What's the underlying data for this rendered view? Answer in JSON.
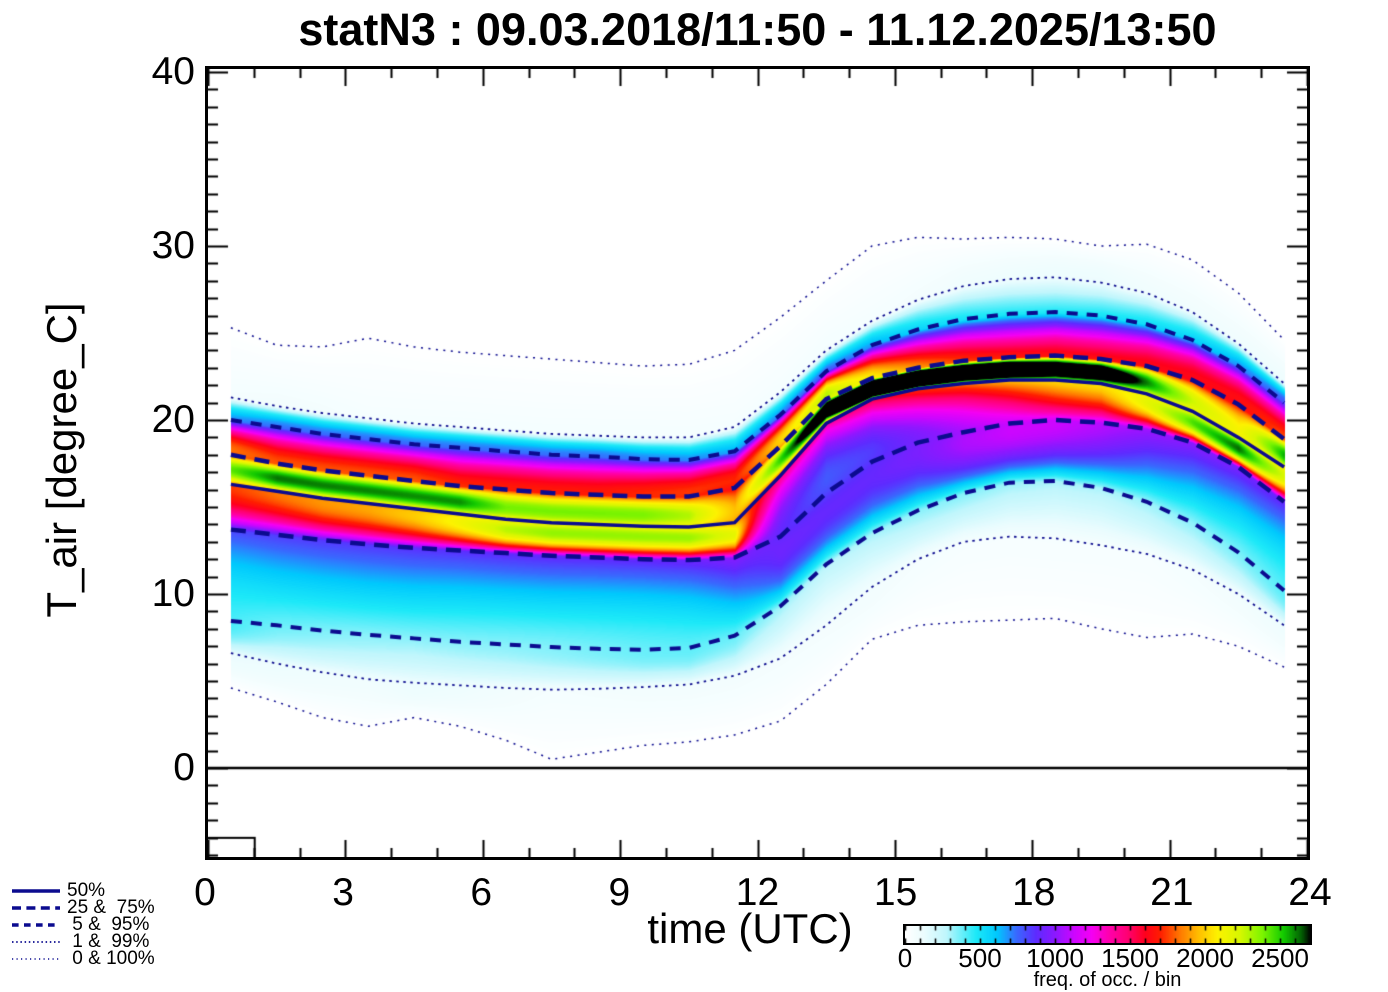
{
  "title": "statN3 : 09.03.2018/11:50 - 11.12.2025/13:50",
  "axes": {
    "x": {
      "label": "time (UTC)",
      "ticks": [
        0,
        3,
        6,
        9,
        12,
        15,
        18,
        21,
        24
      ],
      "min": 0,
      "max": 24,
      "minor_step": 1
    },
    "y": {
      "label": "T_air [degree_C]",
      "ticks": [
        0,
        10,
        20,
        30,
        40
      ],
      "min": -5.3,
      "max": 40.2,
      "minor_step": 1
    }
  },
  "legend": {
    "items": [
      {
        "label": "50%",
        "style": "solid"
      },
      {
        "label": "25 &  75%",
        "style": "dash_long"
      },
      {
        "label": " 5 &  95%",
        "style": "dash"
      },
      {
        "label": " 1 &  99%",
        "style": "dot"
      },
      {
        "label": " 0 & 100%",
        "style": "dot_fine"
      }
    ]
  },
  "colorbar": {
    "caption": "freq. of occ. / bin",
    "ticks": [
      0,
      500,
      1000,
      1500,
      2000,
      2500
    ],
    "max": 2700
  },
  "chart_data": {
    "type": "heatmap",
    "title": "statN3 : 09.03.2018/11:50 - 11.12.2025/13:50",
    "xlabel": "time (UTC)",
    "ylabel": "T_air [degree_C]",
    "xlim": [
      0,
      24
    ],
    "ylim": [
      -5.3,
      40.2
    ],
    "zero_line_temp": 0,
    "line_color": "#0b0b8f",
    "density_scale": 15000,
    "x_hours": [
      0.5,
      1.5,
      2.5,
      3.5,
      4.5,
      5.5,
      6.5,
      7.5,
      8.5,
      9.5,
      10.5,
      11.5,
      12.5,
      13.5,
      14.5,
      15.5,
      16.5,
      17.5,
      18.5,
      19.5,
      20.5,
      21.5,
      22.5,
      23.5
    ],
    "percentile_levels": [
      0,
      0.01,
      0.05,
      0.25,
      0.5,
      0.75,
      0.95,
      0.99,
      1
    ],
    "percentiles": {
      "p0": [
        4.6,
        3.8,
        2.9,
        2.4,
        2.9,
        2.4,
        1.6,
        0.5,
        0.9,
        1.3,
        1.5,
        1.9,
        2.7,
        4.8,
        7.4,
        8.2,
        8.4,
        8.5,
        8.6,
        8.0,
        7.5,
        7.7,
        7.0,
        5.8
      ],
      "p1": [
        6.6,
        6.0,
        5.5,
        5.1,
        4.9,
        4.75,
        4.6,
        4.5,
        4.55,
        4.65,
        4.8,
        5.3,
        6.3,
        8.2,
        10.4,
        12.0,
        13.0,
        13.3,
        13.2,
        12.8,
        12.3,
        11.4,
        10.0,
        8.2
      ],
      "p5": [
        8.45,
        8.2,
        7.9,
        7.65,
        7.45,
        7.25,
        7.1,
        6.95,
        6.85,
        6.8,
        6.9,
        7.6,
        9.3,
        11.7,
        13.5,
        14.8,
        15.8,
        16.4,
        16.5,
        16.1,
        15.3,
        14.1,
        12.4,
        10.2
      ],
      "p25": [
        13.7,
        13.4,
        13.1,
        12.85,
        12.65,
        12.5,
        12.35,
        12.2,
        12.1,
        12.0,
        11.95,
        12.1,
        13.3,
        15.8,
        17.6,
        18.7,
        19.3,
        19.8,
        20.0,
        19.85,
        19.5,
        18.7,
        17.3,
        15.3
      ],
      "p50": [
        16.3,
        15.9,
        15.5,
        15.2,
        14.9,
        14.6,
        14.3,
        14.1,
        14.0,
        13.9,
        13.85,
        14.1,
        16.8,
        19.8,
        21.2,
        21.8,
        22.1,
        22.3,
        22.3,
        22.1,
        21.5,
        20.5,
        19.0,
        17.3
      ],
      "p75": [
        18.0,
        17.5,
        17.1,
        16.8,
        16.5,
        16.2,
        16.0,
        15.8,
        15.7,
        15.6,
        15.6,
        16.1,
        18.5,
        21.2,
        22.4,
        23.0,
        23.4,
        23.6,
        23.7,
        23.5,
        23.1,
        22.3,
        20.9,
        18.9
      ],
      "p95": [
        20.0,
        19.6,
        19.2,
        18.9,
        18.6,
        18.4,
        18.2,
        18.0,
        17.9,
        17.75,
        17.7,
        18.2,
        20.3,
        22.8,
        24.3,
        25.2,
        25.8,
        26.1,
        26.2,
        26.0,
        25.5,
        24.6,
        23.1,
        21.0
      ],
      "p99": [
        21.3,
        20.8,
        20.4,
        20.1,
        19.8,
        19.6,
        19.4,
        19.2,
        19.1,
        19.0,
        19.0,
        19.6,
        21.6,
        24.0,
        25.7,
        26.9,
        27.7,
        28.1,
        28.2,
        27.9,
        27.3,
        26.2,
        24.4,
        22.1
      ],
      "p100": [
        25.3,
        24.3,
        24.2,
        24.7,
        24.2,
        23.9,
        23.7,
        23.5,
        23.3,
        23.1,
        23.2,
        24.0,
        25.9,
        28.0,
        30.0,
        30.5,
        30.4,
        30.5,
        30.4,
        30.0,
        30.1,
        29.2,
        27.3,
        24.6
      ]
    },
    "curve_styles": {
      "p50": "solid",
      "p25": "dash_long",
      "p75": "dash_long",
      "p5": "dash",
      "p95": "dash",
      "p1": "dot",
      "p99": "dot",
      "p0": "dot_fine",
      "p100": "dot_fine"
    },
    "colormap": [
      [
        0,
        "#ffffff"
      ],
      [
        130,
        "#eafcfe"
      ],
      [
        270,
        "#c0f6fc"
      ],
      [
        470,
        "#1de9f8"
      ],
      [
        610,
        "#00c9fd"
      ],
      [
        740,
        "#3969fe"
      ],
      [
        870,
        "#5e2bff"
      ],
      [
        1000,
        "#8d18ff"
      ],
      [
        1120,
        "#cb06ff"
      ],
      [
        1240,
        "#f400f4"
      ],
      [
        1360,
        "#ff00ab"
      ],
      [
        1480,
        "#ff0072"
      ],
      [
        1600,
        "#ff001c"
      ],
      [
        1700,
        "#ff1e00"
      ],
      [
        1830,
        "#ff7800"
      ],
      [
        1960,
        "#ffc100"
      ],
      [
        2080,
        "#fdf200"
      ],
      [
        2230,
        "#d7f700"
      ],
      [
        2380,
        "#7cf400"
      ],
      [
        2520,
        "#12ca00"
      ],
      [
        2640,
        "#036003"
      ],
      [
        2700,
        "#000000"
      ]
    ],
    "corner_box": {
      "width_hours": 1.02,
      "height_deg": 1.1
    }
  }
}
